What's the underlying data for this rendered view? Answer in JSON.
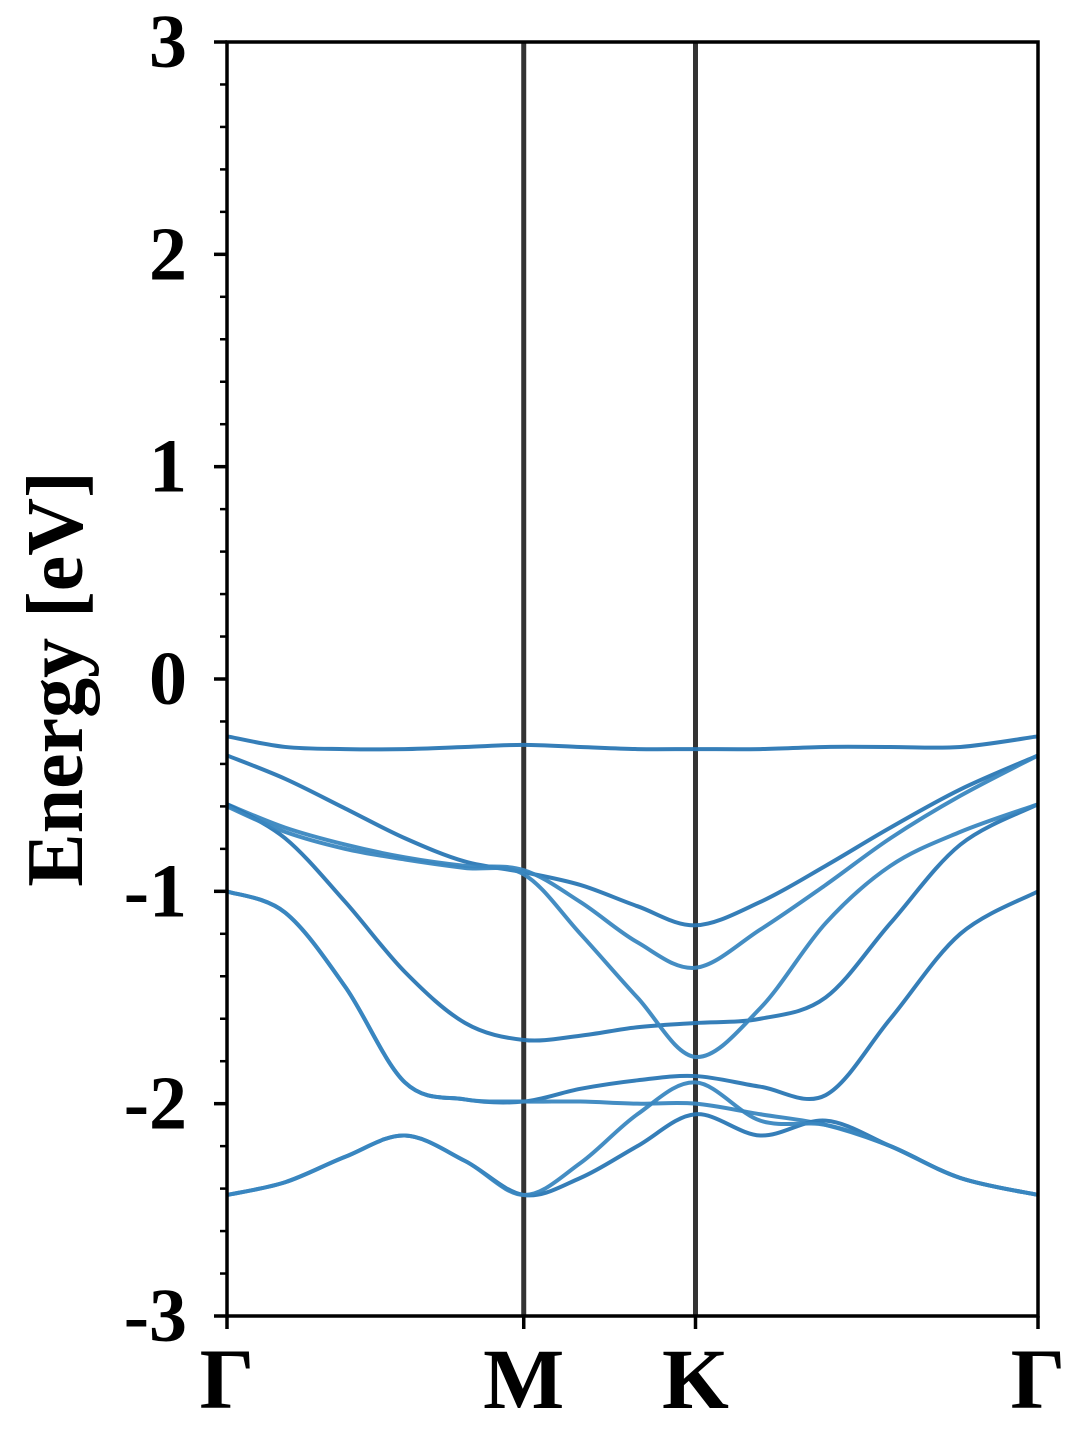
{
  "chart_data": {
    "type": "line",
    "ylabel": "Energy [eV]",
    "xlim": [
      0,
      1.577
    ],
    "ylim": [
      -3,
      3
    ],
    "yticks": [
      -3,
      -2,
      -1,
      0,
      1,
      2,
      3
    ],
    "yminorticks": [
      -2.8,
      -2.6,
      -2.4,
      -2.2,
      -1.8,
      -1.6,
      -1.4,
      -1.2,
      -0.8,
      -0.6,
      -0.4,
      -0.2,
      0.2,
      0.4,
      0.6,
      0.8,
      1.2,
      1.4,
      1.6,
      1.8,
      2.2,
      2.4,
      2.6,
      2.8
    ],
    "xticks": [
      {
        "value": 0,
        "label": "Γ"
      },
      {
        "value": 0.577,
        "label": "M"
      },
      {
        "value": 0.911,
        "label": "K"
      },
      {
        "value": 1.577,
        "label": "Γ"
      }
    ],
    "symmetry_lines": true,
    "x": [
      0,
      0.113,
      0.23,
      0.346,
      0.463,
      0.577,
      0.687,
      0.798,
      0.911,
      1.037,
      1.164,
      1.29,
      1.426,
      1.577
    ],
    "series": [
      {
        "color": "#2a77b4",
        "values": [
          -0.27,
          -0.32,
          -0.33,
          -0.33,
          -0.32,
          -0.31,
          -0.32,
          -0.33,
          -0.33,
          -0.33,
          -0.32,
          -0.32,
          -0.32,
          -0.27
        ]
      },
      {
        "color": "#2a77b4",
        "values": [
          -0.36,
          -0.47,
          -0.61,
          -0.75,
          -0.86,
          -0.91,
          -0.97,
          -1.07,
          -1.16,
          -1.05,
          -0.88,
          -0.7,
          -0.52,
          -0.36
        ]
      },
      {
        "color": "#3a87c0",
        "values": [
          -0.59,
          -0.7,
          -0.78,
          -0.84,
          -0.88,
          -0.9,
          -1.05,
          -1.24,
          -1.36,
          -1.18,
          -0.97,
          -0.75,
          -0.55,
          -0.36
        ]
      },
      {
        "color": "#2a77b4",
        "values": [
          -0.59,
          -0.75,
          -1.05,
          -1.38,
          -1.62,
          -1.7,
          -1.68,
          -1.64,
          -1.62,
          -1.6,
          -1.5,
          -1.15,
          -0.78,
          -0.59
        ]
      },
      {
        "color": "#3a87c0",
        "values": [
          -0.6,
          -0.72,
          -0.8,
          -0.85,
          -0.89,
          -0.92,
          -1.2,
          -1.5,
          -1.78,
          -1.55,
          -1.15,
          -0.88,
          -0.72,
          -0.59
        ]
      },
      {
        "color": "#2a77b4",
        "values": [
          -1.0,
          -1.1,
          -1.45,
          -1.9,
          -1.98,
          -1.99,
          -1.93,
          -1.89,
          -1.87,
          -1.92,
          -1.96,
          -1.6,
          -1.2,
          -1.0
        ]
      },
      {
        "color": "#3a87c0",
        "values": [
          -1.0,
          -1.1,
          -1.45,
          -1.9,
          -1.98,
          -1.99,
          -1.99,
          -2.0,
          -2.0,
          -2.05,
          -2.1,
          -2.2,
          -2.35,
          -2.43
        ]
      },
      {
        "color": "#2a77b4",
        "values": [
          -2.43,
          -2.37,
          -2.25,
          -2.15,
          -2.27,
          -2.43,
          -2.35,
          -2.2,
          -2.05,
          -2.15,
          -2.08,
          -2.2,
          -2.35,
          -2.43
        ]
      },
      {
        "color": "#3a87c0",
        "values": [
          -2.43,
          -2.37,
          -2.25,
          -2.15,
          -2.27,
          -2.43,
          -2.28,
          -2.05,
          -1.9,
          -2.08,
          -2.1,
          -2.2,
          -2.35,
          -2.43
        ]
      }
    ]
  }
}
